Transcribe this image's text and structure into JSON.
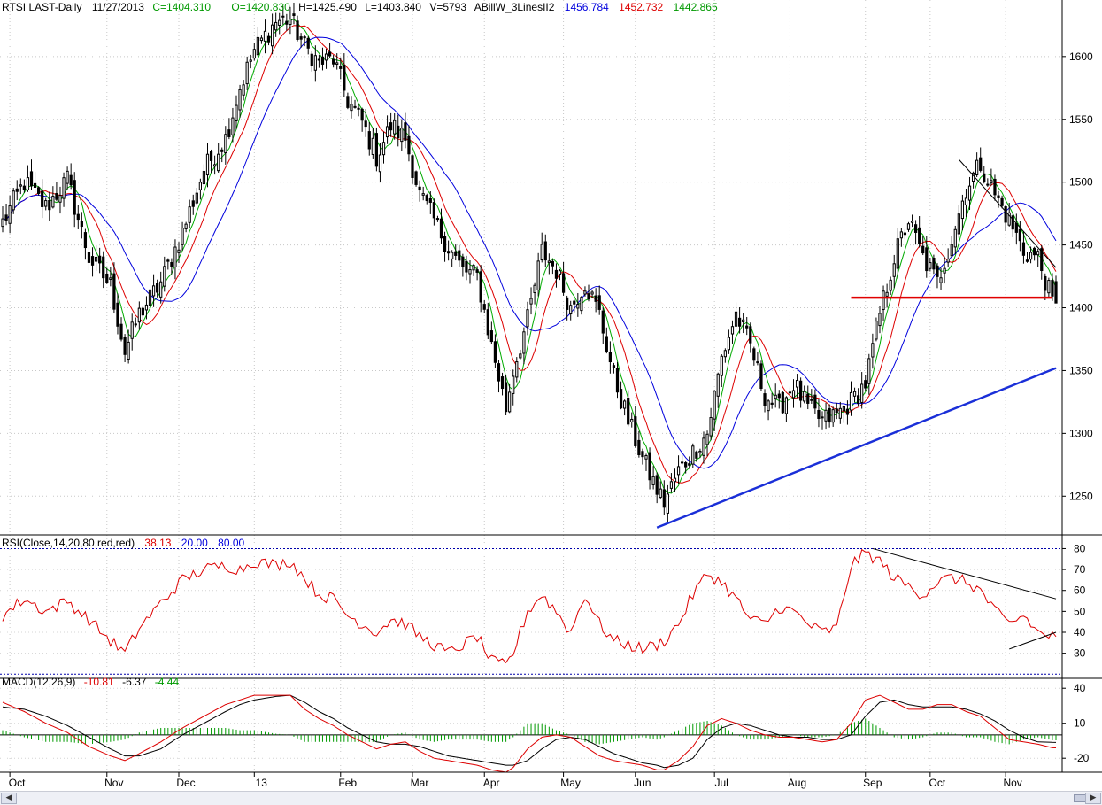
{
  "header": {
    "symbol": "RTSI LAST-Daily",
    "date": "11/27/2013",
    "close": "C=1404.310",
    "open": "O=1420.830",
    "high": "H=1425.490",
    "low": "L=1403.840",
    "volume": "V=5793",
    "indicator_name": "ABillW_3LinesII2",
    "ma_values": [
      "1456.784",
      "1452.732",
      "1442.865"
    ]
  },
  "rsi_header": {
    "label": "RSI(Close,14,20,80,red,red)",
    "value": "38.13",
    "lower": "20.00",
    "upper": "80.00"
  },
  "macd_header": {
    "label": "MACD(12,26,9)",
    "macd": "-10.81",
    "signal": "-6.37",
    "hist": "-4.44"
  },
  "colors": {
    "up_candle": "#ffffff",
    "down_candle": "#000000",
    "ma_fast": "#00aa00",
    "ma_mid": "#dd0000",
    "ma_slow": "#0000dd",
    "trendline_support": "#1a2fd8",
    "resistance_line": "#e00000",
    "rsi_line": "#dd0000",
    "macd_line": "#dd0000",
    "signal_line": "#000000",
    "histogram": "#009900",
    "guide_line": "#0000aa"
  },
  "chart_data": [
    {
      "type": "candlestick",
      "panel": "price",
      "x_labels": [
        "Oct",
        "Nov",
        "Dec",
        "13",
        "Feb",
        "Mar",
        "Apr",
        "May",
        "Jun",
        "Jul",
        "Aug",
        "Sep",
        "Oct",
        "Nov"
      ],
      "y_ticks": [
        1250,
        1300,
        1350,
        1400,
        1450,
        1500,
        1550,
        1600
      ],
      "ylim": [
        1222,
        1645
      ],
      "xlim": [
        0,
        293
      ],
      "close_anchors": [
        [
          0,
          1468
        ],
        [
          6,
          1500
        ],
        [
          12,
          1480
        ],
        [
          18,
          1502
        ],
        [
          24,
          1440
        ],
        [
          30,
          1418
        ],
        [
          34,
          1365
        ],
        [
          38,
          1395
        ],
        [
          44,
          1420
        ],
        [
          50,
          1460
        ],
        [
          56,
          1510
        ],
        [
          62,
          1535
        ],
        [
          66,
          1575
        ],
        [
          70,
          1605
        ],
        [
          76,
          1628
        ],
        [
          80,
          1630
        ],
        [
          84,
          1608
        ],
        [
          88,
          1595
        ],
        [
          92,
          1598
        ],
        [
          96,
          1565
        ],
        [
          100,
          1548
        ],
        [
          104,
          1520
        ],
        [
          108,
          1545
        ],
        [
          112,
          1535
        ],
        [
          116,
          1490
        ],
        [
          120,
          1470
        ],
        [
          124,
          1448
        ],
        [
          128,
          1430
        ],
        [
          132,
          1425
        ],
        [
          136,
          1370
        ],
        [
          140,
          1320
        ],
        [
          142,
          1350
        ],
        [
          146,
          1390
        ],
        [
          150,
          1445
        ],
        [
          154,
          1430
        ],
        [
          158,
          1400
        ],
        [
          162,
          1420
        ],
        [
          166,
          1395
        ],
        [
          170,
          1345
        ],
        [
          174,
          1310
        ],
        [
          178,
          1280
        ],
        [
          182,
          1255
        ],
        [
          184,
          1245
        ],
        [
          188,
          1270
        ],
        [
          192,
          1285
        ],
        [
          196,
          1300
        ],
        [
          200,
          1360
        ],
        [
          204,
          1395
        ],
        [
          208,
          1370
        ],
        [
          212,
          1330
        ],
        [
          216,
          1320
        ],
        [
          220,
          1340
        ],
        [
          224,
          1320
        ],
        [
          228,
          1310
        ],
        [
          232,
          1315
        ],
        [
          236,
          1325
        ],
        [
          240,
          1340
        ],
        [
          244,
          1395
        ],
        [
          248,
          1440
        ],
        [
          252,
          1470
        ],
        [
          256,
          1440
        ],
        [
          260,
          1420
        ],
        [
          264,
          1455
        ],
        [
          268,
          1495
        ],
        [
          272,
          1515
        ],
        [
          276,
          1490
        ],
        [
          280,
          1470
        ],
        [
          284,
          1445
        ],
        [
          288,
          1440
        ],
        [
          292,
          1404
        ]
      ],
      "series": [
        {
          "name": "1456.784",
          "color": "blue",
          "period": 20
        },
        {
          "name": "1452.732",
          "color": "red",
          "period": 10
        },
        {
          "name": "1442.865",
          "color": "green",
          "period": 5
        }
      ],
      "annotations": [
        {
          "type": "trendline",
          "color": "blue",
          "from": [
            182,
            1225
          ],
          "to": [
            293,
            1352
          ]
        },
        {
          "type": "horizontal",
          "color": "red",
          "from": [
            236,
            1408
          ],
          "to": [
            292,
            1408
          ]
        },
        {
          "type": "trendline",
          "color": "black",
          "from": [
            266,
            1518
          ],
          "to": [
            293,
            1432
          ]
        }
      ]
    },
    {
      "type": "line",
      "panel": "rsi",
      "y_ticks": [
        30,
        40,
        50,
        60,
        70,
        80
      ],
      "ylim": [
        18,
        84
      ],
      "guides": [
        20,
        80
      ],
      "anchors": [
        [
          0,
          48
        ],
        [
          6,
          56
        ],
        [
          12,
          50
        ],
        [
          18,
          55
        ],
        [
          24,
          46
        ],
        [
          30,
          36
        ],
        [
          34,
          30
        ],
        [
          38,
          42
        ],
        [
          44,
          54
        ],
        [
          50,
          65
        ],
        [
          56,
          70
        ],
        [
          62,
          72
        ],
        [
          66,
          70
        ],
        [
          70,
          74
        ],
        [
          76,
          72
        ],
        [
          80,
          74
        ],
        [
          84,
          66
        ],
        [
          88,
          58
        ],
        [
          92,
          56
        ],
        [
          96,
          48
        ],
        [
          100,
          44
        ],
        [
          104,
          40
        ],
        [
          108,
          46
        ],
        [
          112,
          44
        ],
        [
          116,
          38
        ],
        [
          120,
          34
        ],
        [
          124,
          30
        ],
        [
          128,
          34
        ],
        [
          132,
          38
        ],
        [
          136,
          26
        ],
        [
          140,
          24
        ],
        [
          142,
          30
        ],
        [
          146,
          50
        ],
        [
          150,
          58
        ],
        [
          154,
          50
        ],
        [
          158,
          40
        ],
        [
          162,
          58
        ],
        [
          166,
          44
        ],
        [
          170,
          36
        ],
        [
          174,
          34
        ],
        [
          178,
          32
        ],
        [
          182,
          34
        ],
        [
          184,
          36
        ],
        [
          188,
          44
        ],
        [
          192,
          58
        ],
        [
          196,
          68
        ],
        [
          200,
          64
        ],
        [
          204,
          56
        ],
        [
          208,
          46
        ],
        [
          212,
          44
        ],
        [
          216,
          52
        ],
        [
          220,
          50
        ],
        [
          224,
          44
        ],
        [
          228,
          40
        ],
        [
          232,
          42
        ],
        [
          236,
          72
        ],
        [
          240,
          78
        ],
        [
          244,
          74
        ],
        [
          248,
          66
        ],
        [
          252,
          62
        ],
        [
          256,
          58
        ],
        [
          260,
          64
        ],
        [
          264,
          66
        ],
        [
          268,
          64
        ],
        [
          272,
          60
        ],
        [
          276,
          50
        ],
        [
          280,
          44
        ],
        [
          284,
          48
        ],
        [
          288,
          40
        ],
        [
          292,
          38
        ]
      ],
      "annotations": [
        {
          "type": "trendline",
          "color": "black",
          "from": [
            242,
            80
          ],
          "to": [
            293,
            56
          ]
        },
        {
          "type": "trendline",
          "color": "black",
          "from": [
            280,
            32
          ],
          "to": [
            293,
            40
          ]
        }
      ]
    },
    {
      "type": "line",
      "panel": "macd",
      "y_ticks": [
        -20,
        10,
        40
      ],
      "ylim": [
        -32,
        47
      ],
      "zero_line": 0,
      "macd_anchors": [
        [
          0,
          28
        ],
        [
          6,
          20
        ],
        [
          12,
          10
        ],
        [
          18,
          2
        ],
        [
          24,
          -10
        ],
        [
          30,
          -18
        ],
        [
          34,
          -22
        ],
        [
          38,
          -16
        ],
        [
          44,
          -6
        ],
        [
          50,
          6
        ],
        [
          56,
          16
        ],
        [
          62,
          26
        ],
        [
          66,
          30
        ],
        [
          70,
          34
        ],
        [
          76,
          34
        ],
        [
          80,
          34
        ],
        [
          84,
          22
        ],
        [
          88,
          14
        ],
        [
          92,
          8
        ],
        [
          96,
          0
        ],
        [
          100,
          -6
        ],
        [
          104,
          -12
        ],
        [
          108,
          -8
        ],
        [
          112,
          -6
        ],
        [
          116,
          -14
        ],
        [
          120,
          -20
        ],
        [
          124,
          -22
        ],
        [
          128,
          -24
        ],
        [
          132,
          -26
        ],
        [
          136,
          -30
        ],
        [
          140,
          -32
        ],
        [
          142,
          -28
        ],
        [
          146,
          -12
        ],
        [
          150,
          -2
        ],
        [
          154,
          0
        ],
        [
          158,
          -2
        ],
        [
          162,
          -10
        ],
        [
          166,
          -18
        ],
        [
          170,
          -22
        ],
        [
          174,
          -24
        ],
        [
          178,
          -26
        ],
        [
          182,
          -30
        ],
        [
          184,
          -30
        ],
        [
          188,
          -22
        ],
        [
          192,
          -10
        ],
        [
          196,
          8
        ],
        [
          200,
          14
        ],
        [
          204,
          10
        ],
        [
          208,
          4
        ],
        [
          212,
          0
        ],
        [
          216,
          -2
        ],
        [
          220,
          -2
        ],
        [
          224,
          -4
        ],
        [
          228,
          -6
        ],
        [
          232,
          -4
        ],
        [
          236,
          10
        ],
        [
          240,
          30
        ],
        [
          244,
          34
        ],
        [
          248,
          28
        ],
        [
          252,
          22
        ],
        [
          256,
          22
        ],
        [
          260,
          26
        ],
        [
          264,
          26
        ],
        [
          268,
          20
        ],
        [
          272,
          16
        ],
        [
          276,
          6
        ],
        [
          280,
          -4
        ],
        [
          284,
          -6
        ],
        [
          288,
          -8
        ],
        [
          292,
          -11
        ]
      ],
      "signal_anchors": [
        [
          0,
          24
        ],
        [
          6,
          22
        ],
        [
          12,
          16
        ],
        [
          18,
          8
        ],
        [
          24,
          -2
        ],
        [
          30,
          -12
        ],
        [
          34,
          -18
        ],
        [
          38,
          -18
        ],
        [
          44,
          -12
        ],
        [
          50,
          0
        ],
        [
          56,
          10
        ],
        [
          62,
          20
        ],
        [
          66,
          26
        ],
        [
          70,
          30
        ],
        [
          76,
          33
        ],
        [
          80,
          34
        ],
        [
          84,
          28
        ],
        [
          88,
          20
        ],
        [
          92,
          14
        ],
        [
          96,
          6
        ],
        [
          100,
          0
        ],
        [
          104,
          -6
        ],
        [
          108,
          -8
        ],
        [
          112,
          -8
        ],
        [
          116,
          -10
        ],
        [
          120,
          -14
        ],
        [
          124,
          -18
        ],
        [
          128,
          -20
        ],
        [
          132,
          -22
        ],
        [
          136,
          -24
        ],
        [
          140,
          -26
        ],
        [
          142,
          -26
        ],
        [
          146,
          -22
        ],
        [
          150,
          -12
        ],
        [
          154,
          -4
        ],
        [
          158,
          -2
        ],
        [
          162,
          -4
        ],
        [
          166,
          -10
        ],
        [
          170,
          -16
        ],
        [
          174,
          -20
        ],
        [
          178,
          -24
        ],
        [
          182,
          -26
        ],
        [
          184,
          -28
        ],
        [
          188,
          -26
        ],
        [
          192,
          -20
        ],
        [
          196,
          -4
        ],
        [
          200,
          6
        ],
        [
          204,
          10
        ],
        [
          208,
          8
        ],
        [
          212,
          4
        ],
        [
          216,
          0
        ],
        [
          220,
          -2
        ],
        [
          224,
          -2
        ],
        [
          228,
          -4
        ],
        [
          232,
          -4
        ],
        [
          236,
          0
        ],
        [
          240,
          16
        ],
        [
          244,
          28
        ],
        [
          248,
          30
        ],
        [
          252,
          26
        ],
        [
          256,
          24
        ],
        [
          260,
          24
        ],
        [
          264,
          24
        ],
        [
          268,
          22
        ],
        [
          272,
          18
        ],
        [
          276,
          12
        ],
        [
          280,
          4
        ],
        [
          284,
          -2
        ],
        [
          288,
          -6
        ],
        [
          292,
          -6.37
        ]
      ]
    }
  ]
}
